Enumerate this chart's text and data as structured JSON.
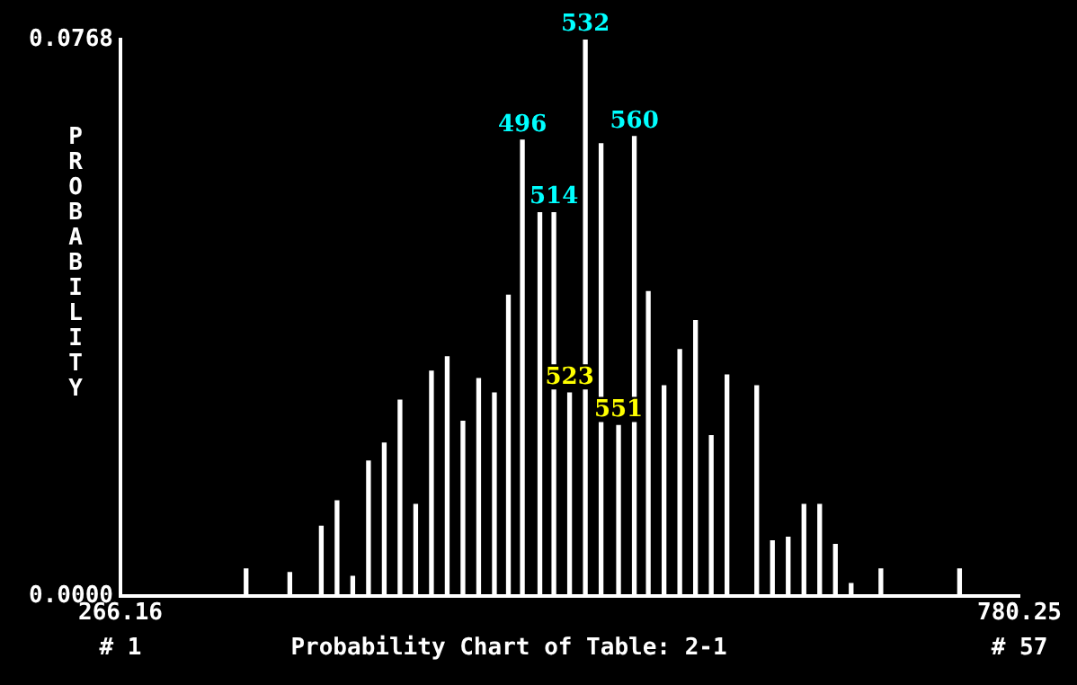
{
  "chart_data": {
    "type": "bar",
    "title": "Probability Chart of Table: 2-1",
    "ylabel": "PROBABILITY",
    "color": "#ffffff",
    "x": [
      338,
      363,
      381,
      390,
      399,
      408,
      417,
      426,
      435,
      444,
      453,
      462,
      471,
      480,
      488,
      496,
      506,
      514,
      523,
      532,
      541,
      551,
      560,
      568,
      577,
      586,
      595,
      604,
      613,
      630,
      639,
      648,
      657,
      666,
      675,
      684,
      701,
      746
    ],
    "values": [
      0.0037,
      0.0032,
      0.0096,
      0.0131,
      0.0027,
      0.0186,
      0.0211,
      0.027,
      0.0126,
      0.031,
      0.033,
      0.0241,
      0.03,
      0.028,
      0.0415,
      0.0629,
      0.0529,
      0.0529,
      0.028,
      0.0768,
      0.0624,
      0.0235,
      0.0634,
      0.042,
      0.029,
      0.034,
      0.038,
      0.0221,
      0.0305,
      0.029,
      0.0076,
      0.0081,
      0.0126,
      0.0126,
      0.0071,
      0.0017,
      0.0037,
      0.0037
    ],
    "xlim": [
      266.16,
      780.25
    ],
    "xticks": [
      266.16,
      780.25
    ],
    "ylim": [
      0,
      0.0768
    ],
    "yticks": [
      {
        "value": 0,
        "label": "0.0000"
      },
      {
        "value": 0.0768,
        "label": "0.0768"
      }
    ],
    "annotations": [
      {
        "text": "496",
        "x": 496,
        "y": 0.0629
      },
      {
        "text": "514",
        "x": 514,
        "y": 0.0529
      },
      {
        "text": "523",
        "x": 523,
        "y": 0.028
      },
      {
        "text": "532",
        "x": 532,
        "y": 0.0768
      },
      {
        "text": "551",
        "x": 551,
        "y": 0.0235
      },
      {
        "text": "560",
        "x": 560,
        "y": 0.0634
      },
      "# 1",
      "# 57"
    ]
  }
}
